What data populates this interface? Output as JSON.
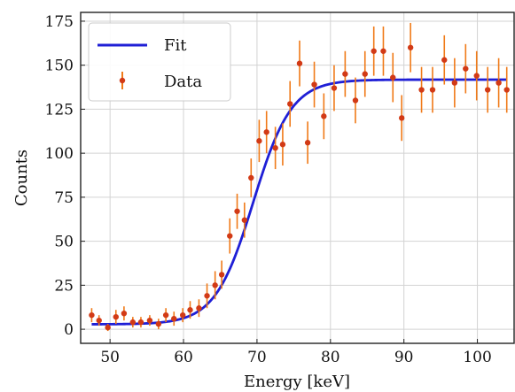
{
  "chart_data": {
    "type": "scatter",
    "title": "",
    "xlabel": "Energy [keV]",
    "ylabel": "Counts",
    "xlim": [
      46,
      105
    ],
    "ylim": [
      -8,
      180
    ],
    "xticks": [
      50,
      60,
      70,
      80,
      90,
      100
    ],
    "yticks": [
      0,
      25,
      50,
      75,
      100,
      125,
      150,
      175
    ],
    "grid": true,
    "legend": {
      "placement": "top-left",
      "entries": [
        "Fit",
        "Data"
      ]
    },
    "colors": {
      "fit": "#1f1fd6",
      "data": "#d23a16",
      "data_error": "#f07a18"
    },
    "series": [
      {
        "name": "Fit",
        "kind": "line",
        "model": "sigmoid",
        "params": {
          "base": 2.8,
          "amplitude": 139,
          "center": 69.5,
          "width": 2.6
        },
        "x_range": [
          47.5,
          104
        ]
      },
      {
        "name": "Data",
        "kind": "errorbar",
        "x": [
          47.5,
          48.5,
          49.7,
          50.8,
          51.9,
          53.1,
          54.2,
          55.4,
          56.6,
          57.6,
          58.7,
          59.9,
          60.9,
          62.1,
          63.2,
          64.3,
          65.2,
          66.3,
          67.3,
          68.3,
          69.2,
          70.3,
          71.3,
          72.5,
          73.5,
          74.5,
          75.8,
          76.9,
          77.8,
          79.1,
          80.5,
          82,
          83.4,
          84.7,
          85.9,
          87.2,
          88.5,
          89.7,
          90.9,
          92.4,
          93.9,
          95.5,
          96.9,
          98.4,
          99.9,
          101.4,
          102.9,
          104
        ],
        "y": [
          8,
          5,
          1,
          7,
          9,
          4,
          4,
          5,
          3,
          8,
          6,
          8,
          11,
          12,
          19,
          25,
          31,
          53,
          67,
          62,
          86,
          107,
          112,
          103,
          105,
          128,
          151,
          106,
          139,
          121,
          137,
          145,
          130,
          145,
          158,
          158,
          143,
          120,
          160,
          136,
          136,
          153,
          140,
          148,
          144,
          136,
          140,
          136
        ],
        "error": [
          4,
          3,
          2,
          4,
          4,
          3,
          3,
          3,
          3,
          4,
          4,
          4,
          5,
          5,
          7,
          8,
          8,
          10,
          10,
          10,
          11,
          12,
          12,
          12,
          12,
          13,
          13,
          12,
          13,
          13,
          13,
          13,
          13,
          13,
          14,
          14,
          14,
          13,
          14,
          13,
          13,
          14,
          14,
          14,
          14,
          13,
          14,
          13
        ]
      }
    ]
  }
}
